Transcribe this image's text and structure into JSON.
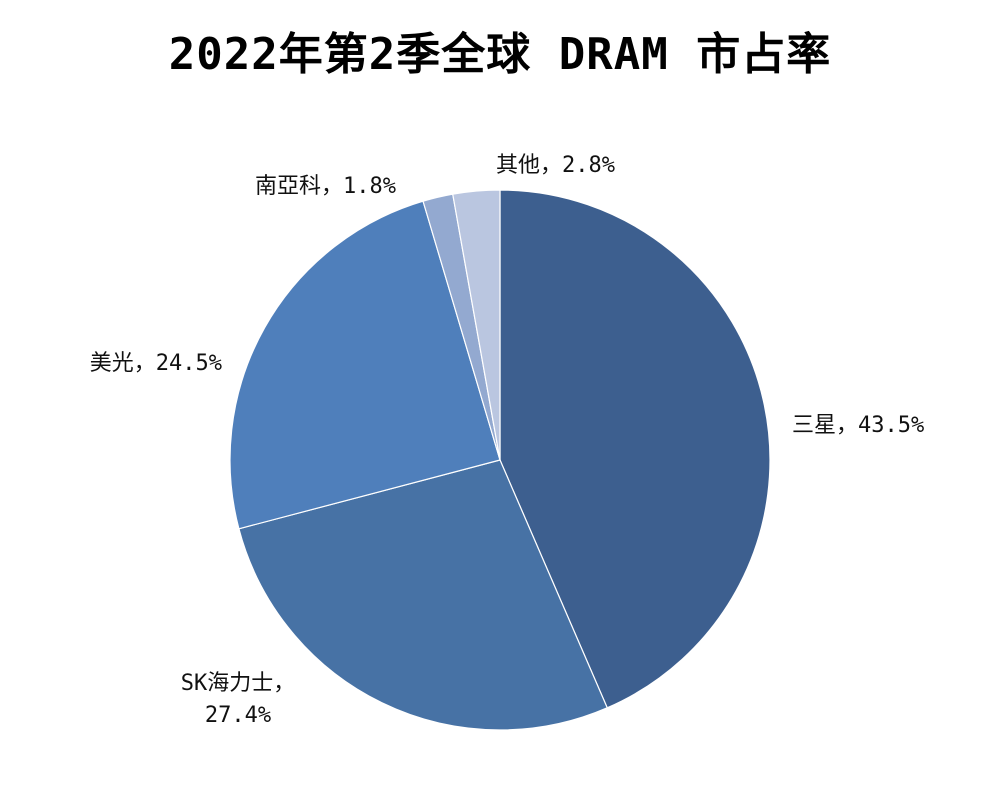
{
  "chart_data": {
    "type": "pie",
    "title": "2022年第2季全球 DRAM 市占率",
    "start_angle_deg": 0,
    "direction": "clockwise",
    "slices": [
      {
        "name": "三星",
        "value": 43.5,
        "value_label": "43.5%",
        "color": "#3d5f8f"
      },
      {
        "name": "SK海力士",
        "value": 27.4,
        "value_label": "27.4%",
        "color": "#4772a5"
      },
      {
        "name": "美光",
        "value": 24.5,
        "value_label": "24.5%",
        "color": "#4f7fbb"
      },
      {
        "name": "南亞科",
        "value": 1.8,
        "value_label": "1.8%",
        "color": "#93a9d0"
      },
      {
        "name": "其他",
        "value": 2.8,
        "value_label": "2.8%",
        "color": "#bac6e0"
      }
    ],
    "legend": "none",
    "data_labels": "outside, category name and percentage"
  }
}
